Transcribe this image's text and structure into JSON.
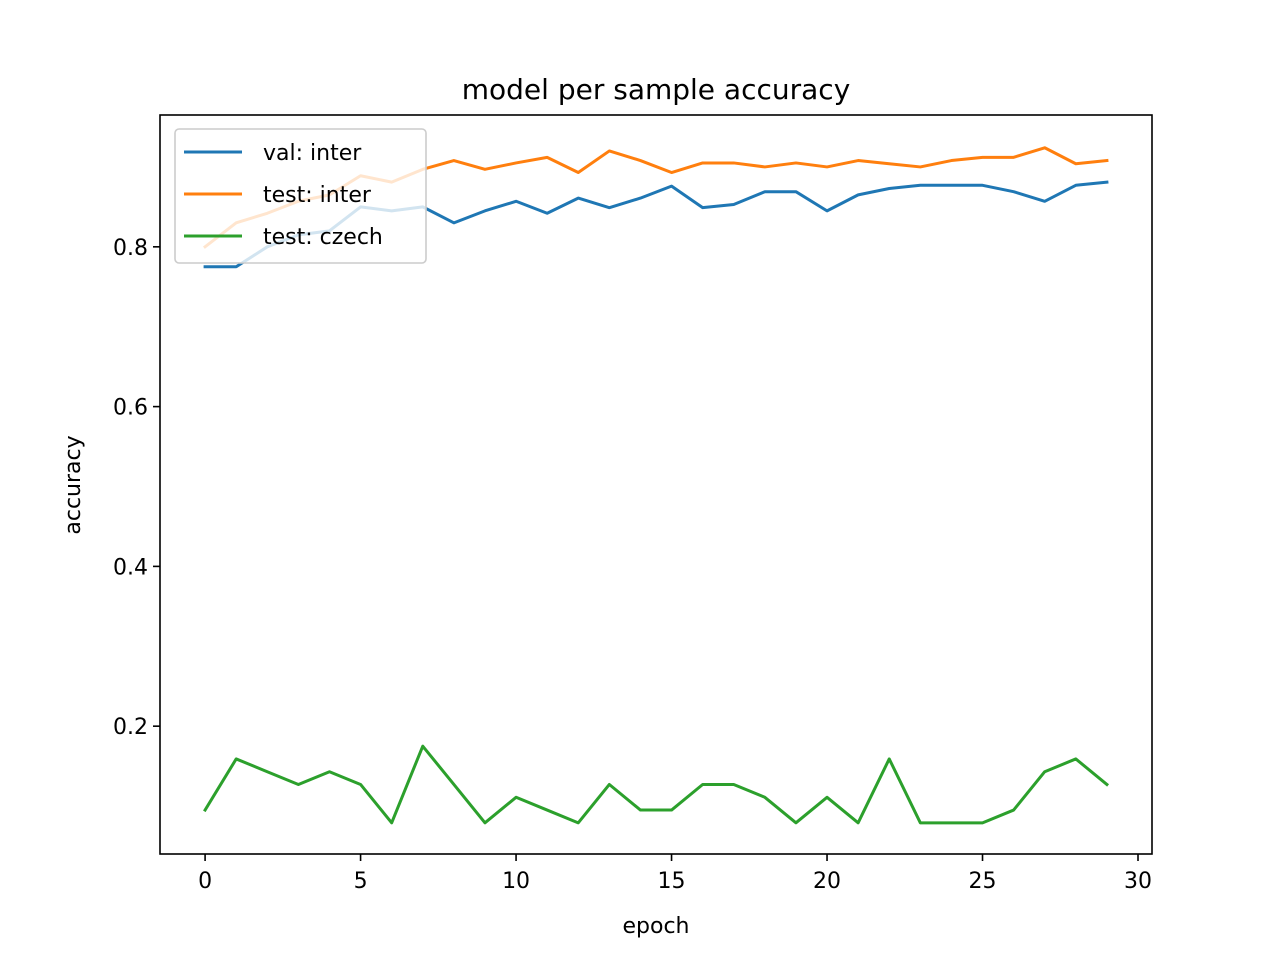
{
  "chart_data": {
    "type": "line",
    "title": "model per sample accuracy",
    "xlabel": "epoch",
    "ylabel": "accuracy",
    "xlim": [
      -1.45,
      30.45
    ],
    "ylim": [
      0.04,
      0.965
    ],
    "xticks": [
      0,
      5,
      10,
      15,
      20,
      25,
      30
    ],
    "yticks": [
      0.2,
      0.4,
      0.6,
      0.8
    ],
    "grid": false,
    "legend_position": "top-left",
    "x": [
      0,
      1,
      2,
      3,
      4,
      5,
      6,
      7,
      8,
      9,
      10,
      11,
      12,
      13,
      14,
      15,
      16,
      17,
      18,
      19,
      20,
      21,
      22,
      23,
      24,
      25,
      26,
      27,
      28,
      29
    ],
    "series": [
      {
        "name": "val: inter",
        "color": "#1f77b4",
        "values": [
          0.775,
          0.775,
          0.8,
          0.815,
          0.82,
          0.85,
          0.845,
          0.85,
          0.83,
          0.845,
          0.857,
          0.842,
          0.861,
          0.849,
          0.861,
          0.876,
          0.849,
          0.853,
          0.869,
          0.869,
          0.845,
          0.865,
          0.873,
          0.877,
          0.877,
          0.877,
          0.869,
          0.857,
          0.877,
          0.881
        ]
      },
      {
        "name": "test: inter",
        "color": "#ff7f0e",
        "values": [
          0.8,
          0.83,
          0.842,
          0.857,
          0.865,
          0.889,
          0.881,
          0.897,
          0.908,
          0.897,
          0.905,
          0.912,
          0.893,
          0.92,
          0.908,
          0.893,
          0.905,
          0.905,
          0.9,
          0.905,
          0.9,
          0.908,
          0.904,
          0.9,
          0.908,
          0.912,
          0.912,
          0.924,
          0.904,
          0.908
        ]
      },
      {
        "name": "test: czech",
        "color": "#2ca02c",
        "values": [
          0.095,
          0.159,
          0.143,
          0.127,
          0.143,
          0.127,
          0.079,
          0.175,
          0.127,
          0.079,
          0.111,
          0.095,
          0.079,
          0.127,
          0.095,
          0.095,
          0.127,
          0.127,
          0.111,
          0.079,
          0.111,
          0.079,
          0.159,
          0.079,
          0.079,
          0.079,
          0.095,
          0.143,
          0.159,
          0.127
        ]
      }
    ]
  }
}
